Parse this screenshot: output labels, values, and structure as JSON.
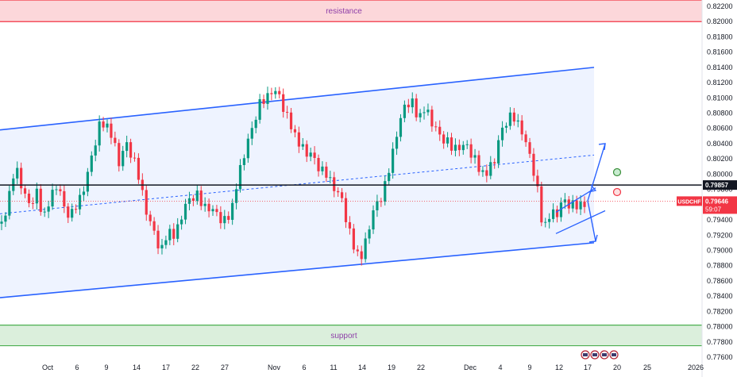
{
  "chart_data": {
    "type": "candlestick",
    "symbol": "USDCHF",
    "current_price": "0.79646",
    "countdown": "59:07",
    "marked_level": "0.79857",
    "y_axis_ticks": [
      "0.82200",
      "0.82000",
      "0.81800",
      "0.81600",
      "0.81400",
      "0.81200",
      "0.81000",
      "0.80800",
      "0.80600",
      "0.80400",
      "0.80200",
      "0.80000",
      "0.79800",
      "0.79600",
      "0.79400",
      "0.79200",
      "0.79000",
      "0.78800",
      "0.78600",
      "0.78400",
      "0.78200",
      "0.78000",
      "0.77800",
      "0.77600"
    ],
    "ylim": [
      0.7755,
      0.823
    ],
    "x_axis_ticks": [
      "Oct",
      "6",
      "9",
      "14",
      "17",
      "22",
      "27",
      "Nov",
      "6",
      "11",
      "14",
      "19",
      "22",
      "Dec",
      "4",
      "9",
      "12",
      "17",
      "20",
      "25",
      "2026"
    ],
    "zones": [
      {
        "label": "resistance",
        "from": 0.82,
        "to": 0.8232,
        "color": "#f23645"
      },
      {
        "label": "support",
        "from": 0.7775,
        "to": 0.7802,
        "color": "#4caf50"
      }
    ],
    "channel": {
      "upper": [
        {
          "t": 0,
          "p": 0.8058
        },
        {
          "t": 1,
          "p": 0.814
        }
      ],
      "lower": [
        {
          "t": 0,
          "p": 0.7838
        },
        {
          "t": 1,
          "p": 0.791
        }
      ],
      "mid": [
        {
          "t": 0,
          "p": 0.7948
        },
        {
          "t": 1,
          "p": 0.8025
        }
      ]
    },
    "price_path": [
      0.7935,
      0.7965,
      0.801,
      0.7985,
      0.7955,
      0.7975,
      0.7945,
      0.7965,
      0.799,
      0.7955,
      0.7945,
      0.796,
      0.799,
      0.802,
      0.806,
      0.807,
      0.8045,
      0.8015,
      0.804,
      0.802,
      0.7985,
      0.795,
      0.792,
      0.7895,
      0.793,
      0.7915,
      0.795,
      0.7965,
      0.7975,
      0.7955,
      0.796,
      0.7945,
      0.7935,
      0.795,
      0.799,
      0.803,
      0.8055,
      0.809,
      0.8095,
      0.8115,
      0.81,
      0.8075,
      0.806,
      0.8035,
      0.803,
      0.802,
      0.8005,
      0.7995,
      0.7985,
      0.7965,
      0.7925,
      0.79,
      0.789,
      0.7935,
      0.796,
      0.7975,
      0.801,
      0.806,
      0.8085,
      0.8095,
      0.8075,
      0.8085,
      0.807,
      0.805,
      0.8045,
      0.803,
      0.804,
      0.8035,
      0.802,
      0.8005,
      0.8,
      0.802,
      0.8055,
      0.8075,
      0.807,
      0.806,
      0.8025,
      0.799,
      0.793,
      0.7945,
      0.795,
      0.7965,
      0.796,
      0.7955,
      0.7965
    ],
    "projections": [
      {
        "from": 0.7965,
        "to": 0.804
      },
      {
        "from": 0.7965,
        "to": 0.7912
      }
    ]
  }
}
